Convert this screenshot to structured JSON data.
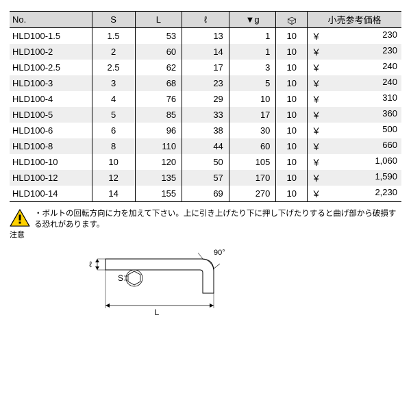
{
  "table": {
    "columns": {
      "no": "No.",
      "s": "S",
      "L": "L",
      "l": "ℓ",
      "g": "▼g",
      "box": "box",
      "price": "小売参考価格"
    },
    "col_widths_pct": [
      21,
      11,
      12,
      12,
      12,
      8,
      24
    ],
    "header_bg": "#d9d9d9",
    "row_alt_bg": "#eeeeee",
    "currency": "￥",
    "rows": [
      {
        "no": "HLD100-1.5",
        "s": "1.5",
        "L": "53",
        "l": "13",
        "g": "1",
        "box": "10",
        "price": "230"
      },
      {
        "no": "HLD100-2",
        "s": "2",
        "L": "60",
        "l": "14",
        "g": "1",
        "box": "10",
        "price": "230"
      },
      {
        "no": "HLD100-2.5",
        "s": "2.5",
        "L": "62",
        "l": "17",
        "g": "3",
        "box": "10",
        "price": "240"
      },
      {
        "no": "HLD100-3",
        "s": "3",
        "L": "68",
        "l": "23",
        "g": "5",
        "box": "10",
        "price": "240"
      },
      {
        "no": "HLD100-4",
        "s": "4",
        "L": "76",
        "l": "29",
        "g": "10",
        "box": "10",
        "price": "310"
      },
      {
        "no": "HLD100-5",
        "s": "5",
        "L": "85",
        "l": "33",
        "g": "17",
        "box": "10",
        "price": "360"
      },
      {
        "no": "HLD100-6",
        "s": "6",
        "L": "96",
        "l": "38",
        "g": "30",
        "box": "10",
        "price": "500"
      },
      {
        "no": "HLD100-8",
        "s": "8",
        "L": "110",
        "l": "44",
        "g": "60",
        "box": "10",
        "price": "660"
      },
      {
        "no": "HLD100-10",
        "s": "10",
        "L": "120",
        "l": "50",
        "g": "105",
        "box": "10",
        "price": "1,060"
      },
      {
        "no": "HLD100-12",
        "s": "12",
        "L": "135",
        "l": "57",
        "g": "170",
        "box": "10",
        "price": "1,590"
      },
      {
        "no": "HLD100-14",
        "s": "14",
        "L": "155",
        "l": "69",
        "g": "270",
        "box": "10",
        "price": "2,230"
      }
    ]
  },
  "note": {
    "title": "注意",
    "text": "・ボルトの回転方向に力を加えて下さい。上に引き上げたり下に押し下げたりすると曲げ部から破損する恐れがあります。"
  },
  "diagram": {
    "label_s": "S",
    "label_l": "ℓ",
    "label_L": "L",
    "label_angle": "90°"
  },
  "colors": {
    "border": "#000000",
    "text": "#000000",
    "warn_fill": "#ffd200",
    "warn_stroke": "#000000"
  }
}
